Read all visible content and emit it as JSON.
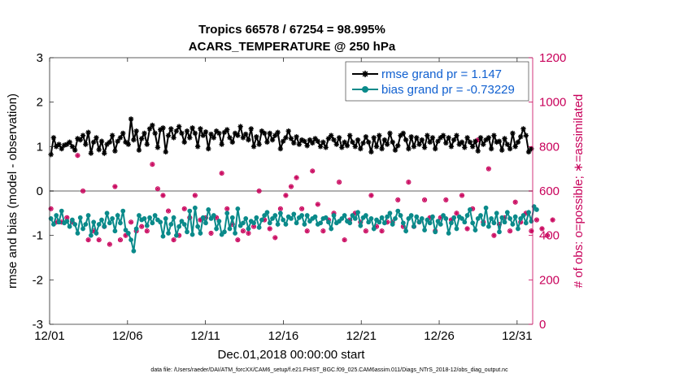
{
  "colors": {
    "rmse": "#000000",
    "bias": "#0a8a8a",
    "obs": "#c8005a",
    "zero_line": "#b0b0b0",
    "legend_text": "#1060d0"
  },
  "chart_data": {
    "type": "line",
    "title": "Tropics 66578 / 67254 = 98.995%",
    "subtitle": "ACARS_TEMPERATURE @ 250 hPa",
    "xlabel": "Dec.01,2018 00:00:00 start",
    "ylabel": "rmse and bias (model - observation)",
    "y2label": "# of obs: o=possible; ∗=assimilated",
    "footnote": "data file: /Users/raeder/DAI/ATM_forcXX/CAM6_setup/f.e21.FHIST_BGC.f09_025.CAM6assim.011/Diags_NTrS_2018-12/obs_diag_output.nc",
    "xlim": [
      0,
      31
    ],
    "ylim": [
      -3,
      3
    ],
    "y2lim": [
      0,
      1200
    ],
    "xticks": [
      0,
      5,
      10,
      15,
      20,
      25,
      30
    ],
    "xtick_labels": [
      "12/01",
      "12/06",
      "12/11",
      "12/16",
      "12/21",
      "12/26",
      "12/31"
    ],
    "yticks": [
      -3,
      -2,
      -1,
      0,
      1,
      2,
      3
    ],
    "ytick_labels": [
      "-3",
      "-2",
      "-1",
      "0",
      "1",
      "2",
      "3"
    ],
    "y2ticks": [
      0,
      200,
      400,
      600,
      800,
      1000,
      1200
    ],
    "y2tick_labels": [
      "0",
      "200",
      "400",
      "600",
      "800",
      "1000",
      "1200"
    ],
    "legend": [
      {
        "key": "rmse",
        "label": "rmse grand pr = 1.147"
      },
      {
        "key": "bias",
        "label": "bias grand pr = -0.73229"
      }
    ],
    "legend_position": "top-right",
    "series": [
      {
        "name": "rmse",
        "axis": "left",
        "style": "line-star",
        "values": [
          0.82,
          1.2,
          1.0,
          1.05,
          0.95,
          1.03,
          1.05,
          1.1,
          1.0,
          0.92,
          1.18,
          1.15,
          1.25,
          1.05,
          1.32,
          0.85,
          1.1,
          1.2,
          0.93,
          1.12,
          0.85,
          1.05,
          1.1,
          1.25,
          0.9,
          1.12,
          1.2,
          1.3,
          1.1,
          1.05,
          1.62,
          1.15,
          1.35,
          0.92,
          1.18,
          1.3,
          1.05,
          1.4,
          1.48,
          1.3,
          0.98,
          1.38,
          1.42,
          0.88,
          1.25,
          1.4,
          1.2,
          1.35,
          1.45,
          1.3,
          1.1,
          1.35,
          1.2,
          1.42,
          1.3,
          1.0,
          1.4,
          1.25,
          1.33,
          0.95,
          1.28,
          1.2,
          1.35,
          1.3,
          1.05,
          1.32,
          1.38,
          1.2,
          1.1,
          1.3,
          1.25,
          1.45,
          1.2,
          1.28,
          1.15,
          1.4,
          1.0,
          1.22,
          1.05,
          1.35,
          1.3,
          1.1,
          1.3,
          1.15,
          1.25,
          1.32,
          0.95,
          1.12,
          1.2,
          1.35,
          1.18,
          1.08,
          1.22,
          1.05,
          1.15,
          1.12,
          1.02,
          1.15,
          1.08,
          1.18,
          1.12,
          1.0,
          1.1,
          0.98,
          1.18,
          1.25,
          1.15,
          1.05,
          1.2,
          0.98,
          1.1,
          1.02,
          1.25,
          1.1,
          1.0,
          1.15,
          0.95,
          1.08,
          1.22,
          1.1,
          0.88,
          1.2,
          1.0,
          1.25,
          0.95,
          1.15,
          1.05,
          1.3,
          1.1,
          0.92,
          1.02,
          1.25,
          1.3,
          1.15,
          0.95,
          1.22,
          1.0,
          1.2,
          1.05,
          1.15,
          0.98,
          1.25,
          1.1,
          1.2,
          0.95,
          1.12,
          1.2,
          1.25,
          1.08,
          1.2,
          1.0,
          1.15,
          1.25,
          1.05,
          1.1,
          0.98,
          1.2,
          1.1,
          1.0,
          1.12,
          0.9,
          1.2,
          1.05,
          1.15,
          1.2,
          0.95,
          1.25,
          1.1,
          1.12,
          0.92,
          1.18,
          1.05,
          0.95,
          1.3,
          1.0,
          1.1,
          1.22,
          1.4,
          1.25,
          0.88,
          0.95
        ]
      },
      {
        "name": "bias",
        "axis": "left",
        "style": "line-circle",
        "values": [
          -0.62,
          -0.75,
          -0.55,
          -0.7,
          -0.45,
          -0.72,
          -0.68,
          -0.8,
          -0.65,
          -0.75,
          -0.95,
          -0.6,
          -0.85,
          -0.75,
          -0.55,
          -1.0,
          -0.7,
          -0.95,
          -0.75,
          -0.65,
          -0.8,
          -0.5,
          -0.72,
          -0.62,
          -0.9,
          -0.55,
          -0.72,
          -0.45,
          -0.88,
          -0.95,
          -1.1,
          -1.35,
          -0.85,
          -0.55,
          -0.65,
          -0.62,
          -0.78,
          -0.6,
          -0.72,
          -0.55,
          -0.65,
          -0.7,
          -1.02,
          -0.62,
          -0.95,
          -0.75,
          -0.6,
          -1.0,
          -0.8,
          -0.68,
          -0.75,
          -0.92,
          -0.45,
          -0.98,
          -0.38,
          -0.8,
          -0.95,
          -0.6,
          -0.72,
          -0.42,
          -0.62,
          -0.55,
          -0.85,
          -0.68,
          -0.98,
          -0.92,
          -0.5,
          -0.85,
          -0.6,
          -0.95,
          -0.4,
          -0.78,
          -0.72,
          -0.62,
          -0.85,
          -0.68,
          -0.72,
          -0.6,
          -0.82,
          -0.65,
          -0.55,
          -0.48,
          -0.72,
          -0.62,
          -0.55,
          -0.75,
          -0.5,
          -0.65,
          -0.75,
          -0.58,
          -0.62,
          -0.52,
          -0.72,
          -0.6,
          -0.55,
          -0.75,
          -0.55,
          -0.68,
          -0.62,
          -0.58,
          -0.75,
          -0.72,
          -0.62,
          -0.6,
          -0.7,
          -0.85,
          -0.55,
          -0.72,
          -0.68,
          -0.62,
          -0.55,
          -0.68,
          -0.72,
          -0.55,
          -0.62,
          -0.48,
          -0.78,
          -0.6,
          -0.55,
          -0.7,
          -0.62,
          -0.85,
          -0.65,
          -0.7,
          -0.6,
          -0.72,
          -0.58,
          -0.5,
          -0.75,
          -0.62,
          -0.45,
          -0.55,
          -0.72,
          -0.9,
          -0.62,
          -0.55,
          -0.8,
          -0.58,
          -0.7,
          -0.62,
          -0.88,
          -0.65,
          -0.72,
          -0.58,
          -0.92,
          -0.68,
          -0.75,
          -0.55,
          -0.62,
          -0.95,
          -0.72,
          -0.6,
          -0.85,
          -0.58,
          -0.62,
          -0.7,
          -0.55,
          -0.42,
          -0.72,
          -0.88,
          -0.62,
          -0.55,
          -0.75,
          -0.38,
          -0.8,
          -0.62,
          -0.72,
          -0.5,
          -0.92,
          -0.6,
          -0.7,
          -0.48,
          -0.62,
          -0.75,
          -0.58,
          -0.85,
          -0.62,
          -0.55,
          -0.72,
          -0.48,
          -0.68,
          -0.35,
          -0.42
        ]
      },
      {
        "name": "obs_possible",
        "axis": "right",
        "style": "circle-marker",
        "values": [
          520,
          640,
          460,
          700,
          460,
          590,
          480,
          440,
          460,
          590,
          760,
          470,
          600,
          400,
          380,
          440,
          420,
          460,
          380,
          610,
          440,
          410,
          360,
          650,
          620,
          640,
          380,
          440,
          400,
          420,
          460,
          560,
          420,
          380,
          440,
          460,
          420,
          480,
          720,
          500,
          610,
          600,
          580,
          420,
          510,
          480,
          380,
          620,
          400,
          560,
          520,
          600,
          480,
          440,
          580,
          620,
          470,
          590,
          480,
          380,
          410,
          420,
          480,
          360,
          680,
          460,
          520,
          530,
          450,
          700,
          380,
          460,
          420,
          500,
          410,
          380,
          440,
          720,
          600,
          650,
          470,
          470,
          430,
          640,
          390,
          390,
          520,
          520,
          580,
          570,
          620,
          550,
          660,
          400,
          520,
          500,
          420,
          560,
          690,
          640,
          540,
          580,
          420,
          450,
          470,
          560,
          500,
          530,
          640,
          600,
          380,
          430,
          470,
          490,
          500,
          520,
          460,
          550,
          420,
          480,
          580,
          500,
          440,
          380,
          420,
          460,
          460,
          430,
          460,
          500,
          560,
          390,
          440,
          400,
          640,
          420,
          440,
          450,
          460,
          700,
          560,
          520,
          480,
          500,
          420,
          400,
          480,
          380,
          560,
          540,
          470,
          620,
          500,
          420,
          580,
          460,
          430,
          490,
          520,
          590,
          830,
          510,
          460,
          440,
          700,
          470,
          400,
          380,
          450,
          390,
          480,
          540,
          420,
          380,
          550,
          430,
          460,
          490,
          500,
          550,
          420,
          540,
          470,
          440,
          430,
          560,
          400,
          620,
          470,
          430
        ]
      },
      {
        "name": "obs_assimilated",
        "axis": "right",
        "style": "star-marker",
        "values": [
          520,
          640,
          460,
          700,
          460,
          590,
          480,
          440,
          460,
          590,
          760,
          470,
          600,
          400,
          380,
          440,
          420,
          460,
          380,
          610,
          440,
          410,
          360,
          650,
          620,
          640,
          380,
          440,
          400,
          420,
          460,
          560,
          420,
          380,
          440,
          460,
          420,
          480,
          720,
          500,
          610,
          600,
          580,
          420,
          510,
          480,
          380,
          620,
          400,
          560,
          520,
          600,
          480,
          440,
          580,
          620,
          470,
          590,
          480,
          380,
          410,
          420,
          480,
          360,
          680,
          460,
          520,
          530,
          450,
          700,
          380,
          460,
          420,
          500,
          410,
          380,
          440,
          720,
          600,
          650,
          470,
          470,
          430,
          640,
          390,
          390,
          520,
          520,
          580,
          570,
          620,
          550,
          660,
          400,
          520,
          500,
          420,
          560,
          690,
          640,
          540,
          580,
          420,
          450,
          470,
          560,
          500,
          530,
          640,
          600,
          380,
          430,
          470,
          490,
          500,
          520,
          460,
          550,
          420,
          480,
          580,
          500,
          440,
          380,
          420,
          460,
          460,
          430,
          460,
          500,
          560,
          390,
          440,
          400,
          640,
          420,
          440,
          450,
          460,
          700,
          560,
          520,
          480,
          500,
          420,
          400,
          480,
          380,
          560,
          540,
          470,
          620,
          500,
          420,
          580,
          460,
          430,
          490,
          520,
          590,
          830,
          510,
          460,
          440,
          700,
          470,
          400,
          380,
          450,
          390,
          480,
          540,
          420,
          380,
          550,
          430,
          460,
          490,
          500,
          550,
          420,
          540,
          470,
          440,
          430,
          560,
          400,
          620,
          470,
          430
        ]
      }
    ]
  }
}
